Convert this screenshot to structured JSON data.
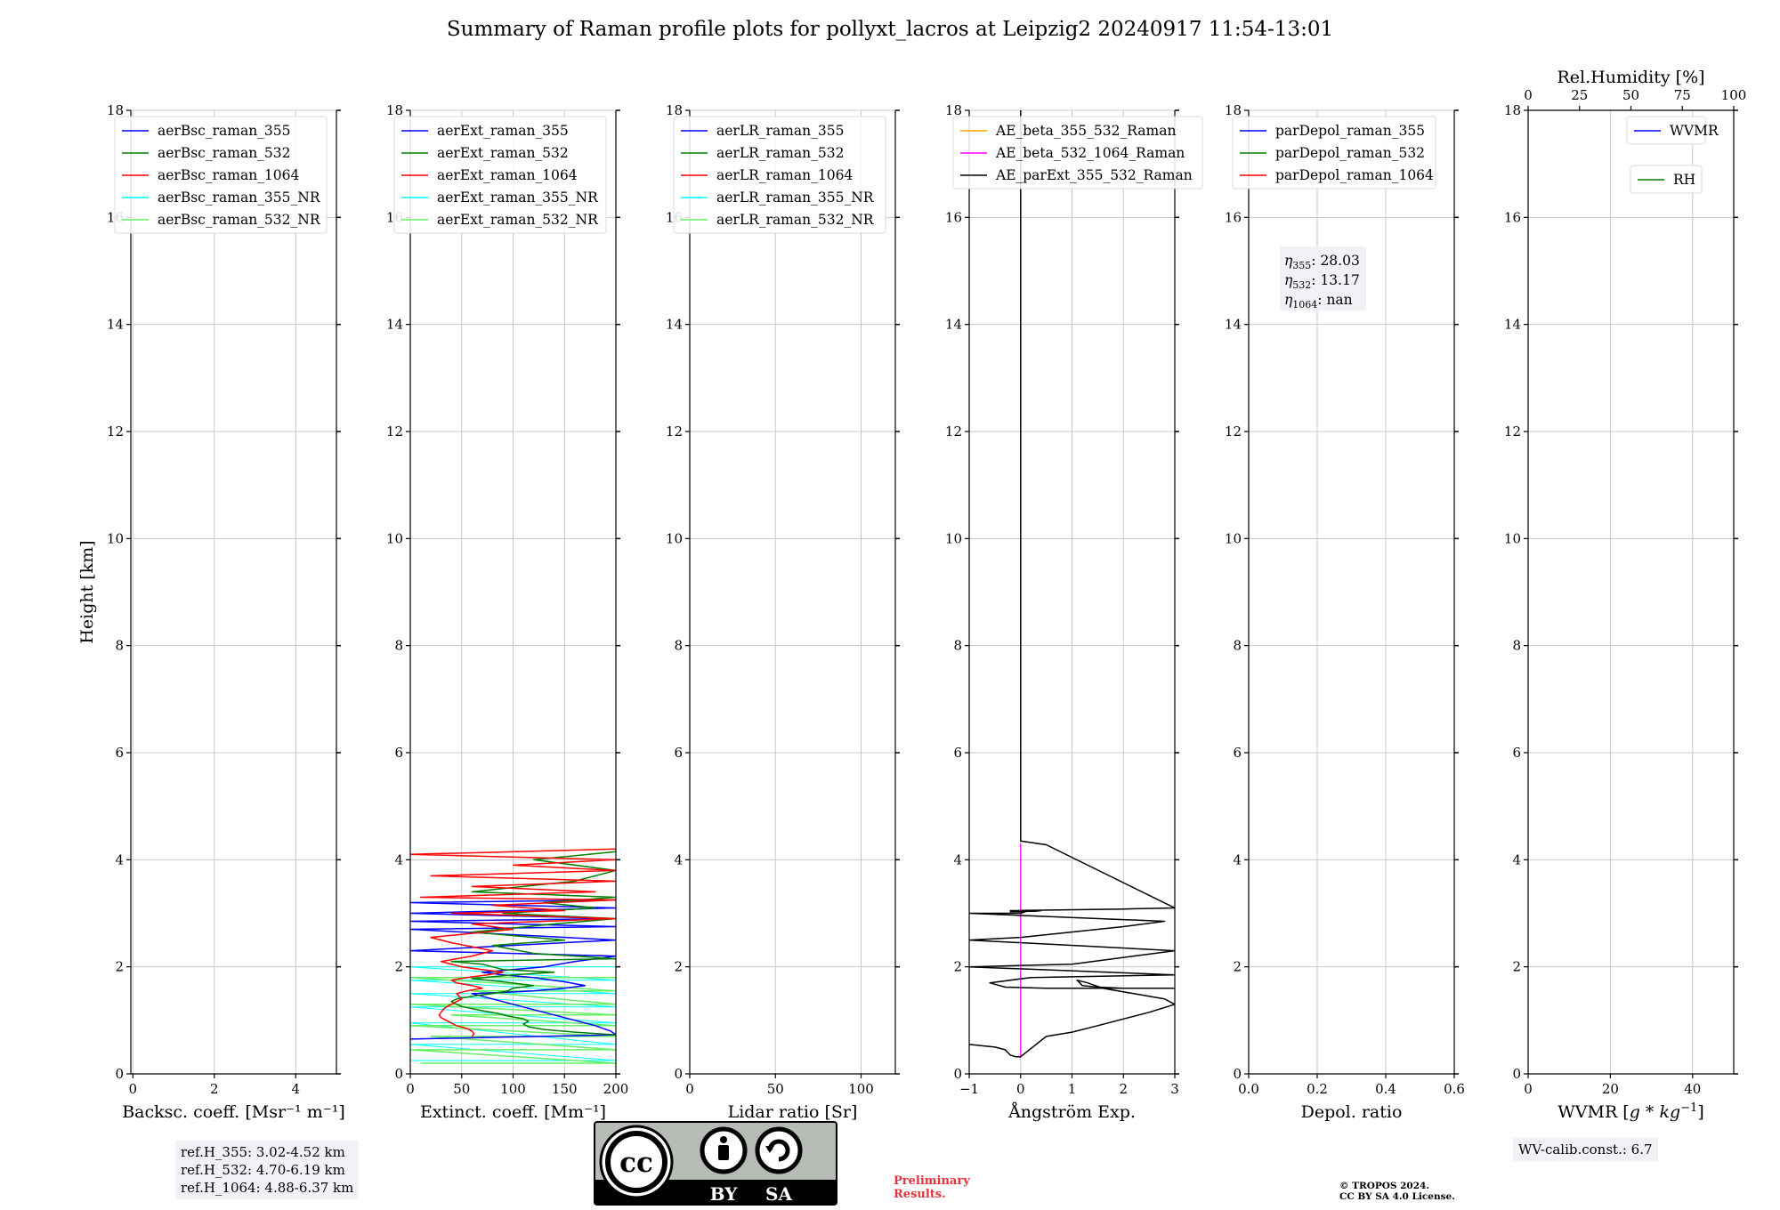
{
  "title": "Summary of Raman profile plots for pollyxt_lacros at Leipzig2 20240917 11:54-13:01",
  "colors": {
    "b355": "#0000ff",
    "b532": "#008000",
    "b1064": "#ff0000",
    "b355nr": "#00ffff",
    "b532nr": "#66ee66",
    "ae1": "#ffa500",
    "ae2": "#ff00ff",
    "ae3": "#000000",
    "grid": "#c8c8c8"
  },
  "chart_data": [
    {
      "type": "line",
      "id": "bsc",
      "xlabel": "Backsc. coeff. [Msr⁻¹ m⁻¹]",
      "ylabel": "Height [km]",
      "xlim": [
        -0.05,
        5
      ],
      "ylim": [
        0,
        18
      ],
      "xticks": [
        0,
        2,
        4
      ],
      "xtick_labels": [
        "0",
        "2",
        "4"
      ],
      "yticks": [
        0,
        2,
        4,
        6,
        8,
        10,
        12,
        14,
        16,
        18
      ],
      "ytick_labels": [
        "0",
        "2",
        "4",
        "6",
        "8",
        "10",
        "12",
        "14",
        "16",
        "18"
      ],
      "legend": [
        {
          "name": "aerBsc_raman_355",
          "color": "#0000ff"
        },
        {
          "name": "aerBsc_raman_532",
          "color": "#008000"
        },
        {
          "name": "aerBsc_raman_1064",
          "color": "#ff0000"
        },
        {
          "name": "aerBsc_raman_355_NR",
          "color": "#00ffff"
        },
        {
          "name": "aerBsc_raman_532_NR",
          "color": "#66ee66"
        }
      ],
      "series": []
    },
    {
      "type": "line",
      "id": "ext",
      "xlabel": "Extinct. coeff. [Mm⁻¹]",
      "ylabel": "",
      "xlim": [
        0,
        200
      ],
      "ylim": [
        0,
        18
      ],
      "xticks": [
        0,
        50,
        100,
        150,
        200
      ],
      "xtick_labels": [
        "0",
        "50",
        "100",
        "150",
        "200"
      ],
      "yticks": [
        0,
        2,
        4,
        6,
        8,
        10,
        12,
        14,
        16,
        18
      ],
      "ytick_labels": [
        "0",
        "2",
        "4",
        "6",
        "8",
        "10",
        "12",
        "14",
        "16",
        "18"
      ],
      "legend": [
        {
          "name": "aerExt_raman_355",
          "color": "#0000ff"
        },
        {
          "name": "aerExt_raman_532",
          "color": "#008000"
        },
        {
          "name": "aerExt_raman_1064",
          "color": "#ff0000"
        },
        {
          "name": "aerExt_raman_355_NR",
          "color": "#00ffff"
        },
        {
          "name": "aerExt_raman_532_NR",
          "color": "#66ee66"
        }
      ],
      "series": [
        {
          "name": "aerExt_raman_355_NR",
          "color": "#00ffff",
          "width": 1,
          "x": [
            0,
            200,
            0,
            200,
            0,
            200,
            0,
            200,
            0,
            200,
            0,
            200,
            0,
            200
          ],
          "y": [
            0.25,
            0.25,
            0.55,
            0.55,
            0.95,
            0.95,
            1.25,
            1.25,
            1.5,
            1.5,
            1.75,
            1.75,
            2.0,
            2.0
          ]
        },
        {
          "name": "aerExt_raman_532_NR",
          "color": "#66ee66",
          "width": 1.5,
          "x": [
            10,
            200,
            0,
            200,
            20,
            200,
            0,
            200,
            40,
            200,
            0,
            200,
            60,
            200,
            0,
            200
          ],
          "y": [
            0.2,
            0.2,
            0.45,
            0.45,
            0.7,
            0.7,
            0.9,
            0.9,
            1.1,
            1.1,
            1.3,
            1.3,
            1.55,
            1.55,
            1.8,
            1.8
          ]
        },
        {
          "name": "aerExt_raman_355",
          "color": "#0000ff",
          "width": 1.5,
          "x": [
            0,
            200,
            195,
            180,
            170,
            150,
            140,
            130,
            120,
            110,
            100,
            90,
            80,
            70,
            60,
            90,
            120,
            150,
            170,
            150,
            120,
            90,
            70,
            100,
            130,
            160,
            200,
            0,
            200,
            0,
            200,
            0,
            200,
            0,
            200,
            0,
            200
          ],
          "y": [
            0.65,
            0.73,
            0.8,
            0.9,
            0.95,
            1.05,
            1.1,
            1.15,
            1.2,
            1.25,
            1.3,
            1.35,
            1.4,
            1.45,
            1.5,
            1.52,
            1.55,
            1.6,
            1.65,
            1.72,
            1.8,
            1.85,
            1.9,
            1.95,
            2.0,
            2.1,
            2.2,
            2.3,
            2.5,
            2.7,
            2.75,
            2.85,
            2.9,
            3.0,
            3.1,
            3.2,
            3.25
          ]
        },
        {
          "name": "aerExt_raman_532",
          "color": "#008000",
          "width": 1.5,
          "x": [
            200,
            160,
            130,
            115,
            110,
            115,
            110,
            95,
            85,
            70,
            60,
            50,
            45,
            40,
            45,
            60,
            80,
            95,
            100,
            120,
            90,
            60,
            100,
            140,
            90,
            70,
            40,
            200,
            120,
            80,
            150,
            60,
            140,
            200,
            90,
            180,
            130,
            200,
            60,
            160,
            200,
            120,
            200
          ],
          "y": [
            0.73,
            0.78,
            0.83,
            0.88,
            0.93,
            0.98,
            1.03,
            1.08,
            1.13,
            1.18,
            1.22,
            1.26,
            1.3,
            1.35,
            1.4,
            1.45,
            1.5,
            1.55,
            1.6,
            1.65,
            1.72,
            1.78,
            1.85,
            1.9,
            1.95,
            2.05,
            2.1,
            2.15,
            2.25,
            2.4,
            2.5,
            2.65,
            2.8,
            2.9,
            3.0,
            3.1,
            3.2,
            3.3,
            3.4,
            3.6,
            3.8,
            4.0,
            4.15
          ]
        },
        {
          "name": "aerExt_raman_1064",
          "color": "#ff0000",
          "width": 1.5,
          "x": [
            60,
            62,
            60,
            55,
            45,
            40,
            35,
            30,
            28,
            30,
            32,
            35,
            40,
            45,
            50,
            45,
            55,
            70,
            60,
            45,
            40,
            55,
            75,
            90,
            70,
            50,
            30,
            60,
            80,
            40,
            20,
            100,
            60,
            200,
            40,
            150,
            80,
            200,
            10,
            180,
            60,
            200,
            20,
            200,
            100,
            200,
            0,
            200
          ],
          "y": [
            0.7,
            0.75,
            0.8,
            0.85,
            0.9,
            0.95,
            1.0,
            1.05,
            1.1,
            1.15,
            1.2,
            1.25,
            1.3,
            1.35,
            1.4,
            1.5,
            1.55,
            1.6,
            1.65,
            1.7,
            1.75,
            1.8,
            1.85,
            1.9,
            1.95,
            2.0,
            2.1,
            2.2,
            2.3,
            2.45,
            2.55,
            2.7,
            2.8,
            2.9,
            3.0,
            3.05,
            3.15,
            3.25,
            3.3,
            3.4,
            3.5,
            3.6,
            3.7,
            3.8,
            3.9,
            4.0,
            4.1,
            4.2
          ]
        }
      ]
    },
    {
      "type": "line",
      "id": "lr",
      "xlabel": "Lidar ratio [Sr]",
      "ylabel": "",
      "xlim": [
        0,
        120
      ],
      "ylim": [
        0,
        18
      ],
      "xticks": [
        0,
        50,
        100
      ],
      "xtick_labels": [
        "0",
        "50",
        "100"
      ],
      "yticks": [
        0,
        2,
        4,
        6,
        8,
        10,
        12,
        14,
        16,
        18
      ],
      "ytick_labels": [
        "0",
        "2",
        "4",
        "6",
        "8",
        "10",
        "12",
        "14",
        "16",
        "18"
      ],
      "legend": [
        {
          "name": "aerLR_raman_355",
          "color": "#0000ff"
        },
        {
          "name": "aerLR_raman_532",
          "color": "#008000"
        },
        {
          "name": "aerLR_raman_1064",
          "color": "#ff0000"
        },
        {
          "name": "aerLR_raman_355_NR",
          "color": "#00ffff"
        },
        {
          "name": "aerLR_raman_532_NR",
          "color": "#66ee66"
        }
      ],
      "series": []
    },
    {
      "type": "line",
      "id": "ae",
      "xlabel": "Ångström Exp.",
      "ylabel": "",
      "xlim": [
        -1,
        3
      ],
      "ylim": [
        0,
        18
      ],
      "xticks": [
        -1,
        0,
        1,
        2,
        3
      ],
      "xtick_labels": [
        "−1",
        "0",
        "1",
        "2",
        "3"
      ],
      "yticks": [
        0,
        2,
        4,
        6,
        8,
        10,
        12,
        14,
        16,
        18
      ],
      "ytick_labels": [
        "0",
        "2",
        "4",
        "6",
        "8",
        "10",
        "12",
        "14",
        "16",
        "18"
      ],
      "legend": [
        {
          "name": "AE_beta_355_532_Raman",
          "color": "#ffa500"
        },
        {
          "name": "AE_beta_532_1064_Raman",
          "color": "#ff00ff"
        },
        {
          "name": "AE_parExt_355_532_Raman",
          "color": "#000000"
        }
      ],
      "series": [
        {
          "name": "AE_beta_532_1064_Raman",
          "color": "#ff00ff",
          "width": 1.3,
          "x": [
            0,
            0
          ],
          "y": [
            0.3,
            4.3
          ]
        },
        {
          "name": "AE_parExt_355_532_Raman",
          "color": "#000000",
          "width": 1.5,
          "x": [
            -1,
            -0.5,
            -0.3,
            -0.25,
            -0.2,
            -0.1,
            0,
            0.5,
            1,
            1.5,
            2.5,
            3.0,
            2.8,
            2.2,
            1.6,
            1.3,
            1.1,
            1.2,
            1.5,
            2.0,
            2.6,
            3.0,
            0.5,
            -0.3,
            -0.6,
            0.2,
            3.0,
            -1,
            1.0,
            2.2,
            3.0,
            -1,
            0,
            2.0,
            2.8,
            -1,
            0,
            0.1,
            -0.2,
            0.3,
            0.4,
            -0.2,
            2.0,
            3.0,
            0.5,
            0,
            0,
            0,
            0
          ],
          "y": [
            0.55,
            0.5,
            0.45,
            0.4,
            0.35,
            0.32,
            0.32,
            0.7,
            0.78,
            0.9,
            1.15,
            1.3,
            1.4,
            1.5,
            1.6,
            1.7,
            1.75,
            1.65,
            1.62,
            1.6,
            1.6,
            1.6,
            1.6,
            1.62,
            1.7,
            1.8,
            1.85,
            2.0,
            2.05,
            2.2,
            2.3,
            2.5,
            2.55,
            2.75,
            2.85,
            3.0,
            3.0,
            3.03,
            3.03,
            3.04,
            3.05,
            3.05,
            3.08,
            3.1,
            4.28,
            4.35,
            10,
            17,
            18
          ]
        }
      ]
    },
    {
      "type": "line",
      "id": "depol",
      "xlabel": "Depol. ratio",
      "ylabel": "",
      "xlim": [
        0,
        0.6
      ],
      "ylim": [
        0,
        18
      ],
      "xticks": [
        0,
        0.2,
        0.4,
        0.6
      ],
      "xtick_labels": [
        "0.0",
        "0.2",
        "0.4",
        "0.6"
      ],
      "yticks": [
        0,
        2,
        4,
        6,
        8,
        10,
        12,
        14,
        16,
        18
      ],
      "ytick_labels": [
        "0",
        "2",
        "4",
        "6",
        "8",
        "10",
        "12",
        "14",
        "16",
        "18"
      ],
      "legend": [
        {
          "name": "parDepol_raman_355",
          "color": "#0000ff"
        },
        {
          "name": "parDepol_raman_532",
          "color": "#008000"
        },
        {
          "name": "parDepol_raman_1064",
          "color": "#ff0000"
        }
      ],
      "annotation": {
        "lines": [
          {
            "label": "355",
            "value": "28.03"
          },
          {
            "label": "532",
            "value": "13.17"
          },
          {
            "label": "1064",
            "value": "nan"
          }
        ]
      },
      "series": []
    },
    {
      "type": "line",
      "id": "wv",
      "xlabel": "WVMR [",
      "xlabel_math": "g * kg",
      "xlabel_exp": "−1",
      "xlabel_end": "]",
      "ylabel": "",
      "xlim": [
        0,
        50
      ],
      "ylim": [
        0,
        18
      ],
      "xticks": [
        0,
        20,
        40
      ],
      "xtick_labels": [
        "0",
        "20",
        "40"
      ],
      "yticks": [
        0,
        2,
        4,
        6,
        8,
        10,
        12,
        14,
        16,
        18
      ],
      "ytick_labels": [
        "0",
        "2",
        "4",
        "6",
        "8",
        "10",
        "12",
        "14",
        "16",
        "18"
      ],
      "top_axis": {
        "label": "Rel.Humidity [%]",
        "xlim": [
          0,
          100
        ],
        "xticks": [
          0,
          25,
          50,
          75,
          100
        ],
        "xtick_labels": [
          "0",
          "25",
          "50",
          "75",
          "100"
        ]
      },
      "legend": [
        {
          "name": "WVMR",
          "color": "#0000ff"
        }
      ],
      "legend2": [
        {
          "name": "RH",
          "color": "#008000"
        }
      ],
      "series": []
    }
  ],
  "info": {
    "ref_lines": [
      "ref.H_355: 3.02-4.52 km",
      "ref.H_532: 4.70-6.19 km",
      "ref.H_1064: 4.88-6.37 km"
    ],
    "wv_calib": "WV-calib.const.: 6.7",
    "prelim_1": "Preliminary",
    "prelim_2": "Results.",
    "copyright_1": "© TROPOS 2024.",
    "copyright_2": "CC BY SA 4.0 License.",
    "logo": {
      "c1": "cc",
      "c2": "BY",
      "c3": "SA"
    }
  }
}
